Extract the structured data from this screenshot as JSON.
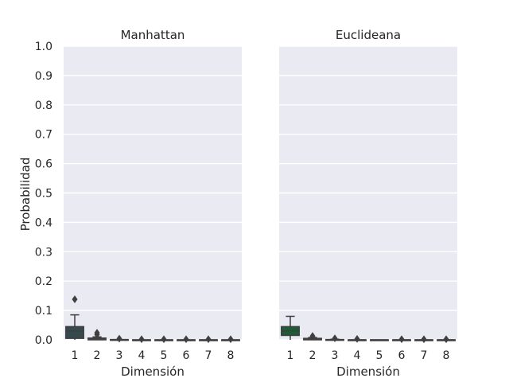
{
  "chart_data": {
    "type": "boxplot",
    "ylabel": "Probabilidad",
    "ylim": [
      0,
      1
    ],
    "y_ticks": [
      "0.0",
      "0.1",
      "0.2",
      "0.3",
      "0.4",
      "0.5",
      "0.6",
      "0.7",
      "0.8",
      "0.9",
      "1.0"
    ],
    "y_tick_values": [
      0,
      0.1,
      0.2,
      0.3,
      0.4,
      0.5,
      0.6,
      0.7,
      0.8,
      0.9,
      1.0
    ],
    "background_color": "#eaeaf2",
    "grid": true,
    "panels": [
      {
        "title": "Manhattan",
        "xlabel": "Dimensión",
        "categories": [
          "1",
          "2",
          "3",
          "4",
          "5",
          "6",
          "7",
          "8"
        ],
        "color": "#35494f",
        "boxes": [
          {
            "whislo": 0.0,
            "q1": 0.005,
            "med": 0.03,
            "q3": 0.045,
            "whishi": 0.085,
            "fliers": [
              0.138
            ]
          },
          {
            "whislo": 0.0,
            "q1": 0.0,
            "med": 0.002,
            "q3": 0.006,
            "whishi": 0.01,
            "fliers": [
              0.018,
              0.024
            ]
          },
          {
            "whislo": 0.0,
            "q1": 0.0,
            "med": 0.0,
            "q3": 0.001,
            "whishi": 0.001,
            "fliers": [
              0.004
            ]
          },
          {
            "whislo": 0.0,
            "q1": 0.0,
            "med": 0.0,
            "q3": 0.0,
            "whishi": 0.0,
            "fliers": [
              0.002
            ]
          },
          {
            "whislo": 0.0,
            "q1": 0.0,
            "med": 0.0,
            "q3": 0.0,
            "whishi": 0.0,
            "fliers": [
              0.002
            ]
          },
          {
            "whislo": 0.0,
            "q1": 0.0,
            "med": 0.0,
            "q3": 0.0,
            "whishi": 0.0,
            "fliers": [
              0.002
            ]
          },
          {
            "whislo": 0.0,
            "q1": 0.0,
            "med": 0.0,
            "q3": 0.0,
            "whishi": 0.0,
            "fliers": [
              0.002
            ]
          },
          {
            "whislo": 0.0,
            "q1": 0.0,
            "med": 0.0,
            "q3": 0.0,
            "whishi": 0.0,
            "fliers": [
              0.002
            ]
          }
        ]
      },
      {
        "title": "Euclideana",
        "xlabel": "Dimensión",
        "categories": [
          "1",
          "2",
          "3",
          "4",
          "5",
          "6",
          "7",
          "8"
        ],
        "color": "#1b5e36",
        "boxes": [
          {
            "whislo": 0.0,
            "q1": 0.015,
            "med": 0.03,
            "q3": 0.045,
            "whishi": 0.08,
            "fliers": []
          },
          {
            "whislo": 0.0,
            "q1": 0.0,
            "med": 0.002,
            "q3": 0.005,
            "whishi": 0.008,
            "fliers": [
              0.013
            ]
          },
          {
            "whislo": 0.0,
            "q1": 0.0,
            "med": 0.0,
            "q3": 0.001,
            "whishi": 0.002,
            "fliers": [
              0.005
            ]
          },
          {
            "whislo": 0.0,
            "q1": 0.0,
            "med": 0.0,
            "q3": 0.0,
            "whishi": 0.0,
            "fliers": [
              0.003
            ]
          },
          {
            "whislo": 0.0,
            "q1": 0.0,
            "med": 0.0,
            "q3": 0.0,
            "whishi": 0.0,
            "fliers": []
          },
          {
            "whislo": 0.0,
            "q1": 0.0,
            "med": 0.0,
            "q3": 0.0,
            "whishi": 0.0,
            "fliers": [
              0.002
            ]
          },
          {
            "whislo": 0.0,
            "q1": 0.0,
            "med": 0.0,
            "q3": 0.0,
            "whishi": 0.0,
            "fliers": [
              0.002
            ]
          },
          {
            "whislo": 0.0,
            "q1": 0.0,
            "med": 0.0,
            "q3": 0.0,
            "whishi": 0.0,
            "fliers": [
              0.002
            ]
          }
        ]
      }
    ]
  }
}
